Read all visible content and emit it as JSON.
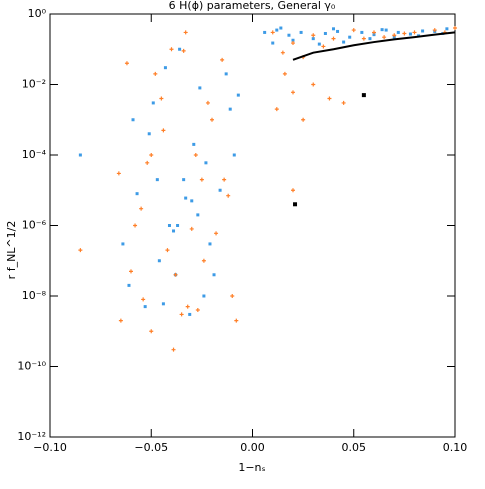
{
  "chart_data": {
    "type": "scatter",
    "title": "6 H(ϕ) parameters, General γ₀",
    "x_label": "1−nₛ",
    "y_label": "r f_NL^1/2",
    "log_y": true,
    "xlim": [
      -0.1,
      0.1
    ],
    "ylim": [
      1e-12,
      1
    ],
    "xticks": [
      {
        "value": -0.1,
        "label": "−0.10"
      },
      {
        "value": -0.05,
        "label": "−0.05"
      },
      {
        "value": 0,
        "label": "0.00"
      },
      {
        "value": 0.05,
        "label": "0.05"
      },
      {
        "value": 0.1,
        "label": "0.10"
      }
    ],
    "yticks": [
      {
        "value": 1,
        "label": "10⁰"
      },
      {
        "value": 0.01,
        "label": "10⁻²"
      },
      {
        "value": 0.0001,
        "label": "10⁻⁴"
      },
      {
        "value": 1e-06,
        "label": "10⁻⁶"
      },
      {
        "value": 1e-08,
        "label": "10⁻⁸"
      },
      {
        "value": 1e-10,
        "label": "10⁻¹⁰"
      },
      {
        "value": 1e-12,
        "label": "10⁻¹²"
      }
    ],
    "series": [
      {
        "color": "#3d9be6",
        "marker": "square",
        "x": [
          -0.064,
          -0.059,
          -0.053,
          -0.047,
          -0.043,
          -0.038,
          -0.033,
          -0.029,
          -0.026,
          -0.021,
          -0.016,
          -0.011,
          -0.007,
          -0.061,
          -0.051,
          -0.041,
          -0.031,
          -0.023,
          -0.013,
          -0.057,
          -0.046,
          -0.036,
          -0.027,
          -0.019,
          -0.009,
          -0.049,
          -0.039,
          -0.034,
          -0.024,
          -0.044,
          -0.03,
          -0.037,
          -0.085,
          0.006,
          0.012,
          0.018,
          0.024,
          0.03,
          0.036,
          0.042,
          0.048,
          0.054,
          0.06,
          0.066,
          0.072,
          0.078,
          0.084,
          0.09,
          0.096,
          0.01,
          0.02,
          0.033,
          0.045,
          0.058,
          0.07,
          0.082,
          0.094,
          0.014,
          0.04,
          0.064
        ],
        "values": [
          3e-07,
          0.001,
          5e-09,
          2e-05,
          0.03,
          4e-08,
          6e-06,
          0.0002,
          0.008,
          3e-07,
          1e-05,
          0.002,
          0.005,
          2e-08,
          0.0004,
          1e-06,
          3e-09,
          6e-05,
          0.02,
          8e-06,
          1e-07,
          0.1,
          2e-06,
          4e-08,
          0.0001,
          0.003,
          7e-07,
          2e-05,
          1e-08,
          6e-09,
          5e-06,
          1e-06,
          0.0001,
          0.3,
          0.35,
          0.25,
          0.3,
          0.2,
          0.28,
          0.32,
          0.22,
          0.3,
          0.26,
          0.35,
          0.3,
          0.27,
          0.33,
          0.32,
          0.38,
          0.15,
          0.18,
          0.14,
          0.16,
          0.2,
          0.22,
          0.24,
          0.28,
          0.4,
          0.38,
          0.36
        ]
      },
      {
        "color": "#ff7f27",
        "marker": "plus",
        "x": [
          -0.065,
          -0.06,
          -0.055,
          -0.05,
          -0.045,
          -0.04,
          -0.035,
          -0.03,
          -0.025,
          -0.02,
          -0.015,
          -0.01,
          -0.062,
          -0.052,
          -0.042,
          -0.032,
          -0.022,
          -0.012,
          -0.058,
          -0.048,
          -0.038,
          -0.028,
          -0.018,
          -0.008,
          -0.066,
          -0.044,
          -0.034,
          -0.024,
          -0.014,
          -0.054,
          -0.039,
          -0.027,
          -0.05,
          -0.033,
          0.01,
          0.02,
          0.03,
          0.04,
          0.05,
          0.06,
          0.07,
          0.08,
          0.09,
          0.1,
          0.015,
          0.035,
          0.055,
          0.075,
          0.095,
          0.025,
          0.065,
          0.012,
          0.02,
          0.03,
          0.045,
          0.025,
          -0.085,
          0.02,
          0.038,
          0.016
        ],
        "values": [
          2e-09,
          5e-08,
          3e-06,
          0.0001,
          0.004,
          0.1,
          3e-09,
          8e-07,
          2e-05,
          0.001,
          0.05,
          1e-08,
          0.04,
          6e-05,
          2e-07,
          5e-09,
          0.003,
          7e-06,
          1e-06,
          0.02,
          4e-08,
          0.0001,
          6e-07,
          2e-09,
          3e-05,
          0.0005,
          0.09,
          1e-07,
          2e-05,
          8e-09,
          3e-10,
          4e-09,
          1e-09,
          0.3,
          0.3,
          0.15,
          0.25,
          0.2,
          0.35,
          0.3,
          0.25,
          0.3,
          0.35,
          0.4,
          0.08,
          0.12,
          0.2,
          0.28,
          0.3,
          0.06,
          0.22,
          0.002,
          0.006,
          0.01,
          0.003,
          0.001,
          2e-07,
          1e-05,
          0.004,
          0.02
        ]
      }
    ],
    "curve": {
      "color": "#000000",
      "x": [
        0.02,
        0.03,
        0.04,
        0.05,
        0.06,
        0.07,
        0.08,
        0.09,
        0.1
      ],
      "values": [
        0.05,
        0.08,
        0.1,
        0.13,
        0.16,
        0.19,
        0.22,
        0.26,
        0.3
      ]
    },
    "points": {
      "color": "#000000",
      "x": [
        0.055,
        0.021
      ],
      "values": [
        0.005,
        4e-06
      ]
    }
  }
}
